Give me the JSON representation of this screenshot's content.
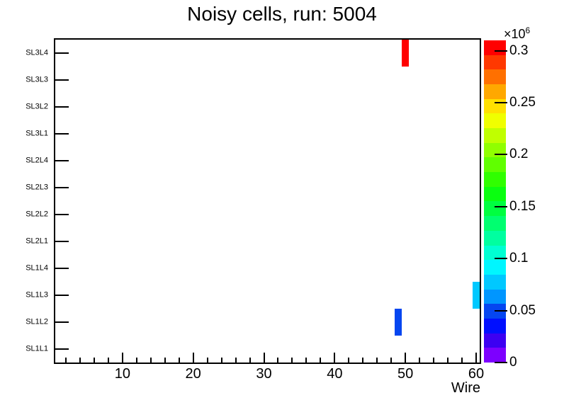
{
  "title": "Noisy cells, run: 5004",
  "x_axis": {
    "title": "Wire",
    "major_ticks": [
      10,
      20,
      30,
      40,
      50,
      60
    ],
    "minor_step": 2,
    "min": 0.5,
    "max": 60.5
  },
  "y_axis": {
    "labels_top_to_bottom": [
      "SL3L4",
      "SL3L3",
      "SL3L2",
      "SL3L1",
      "SL2L4",
      "SL2L3",
      "SL2L2",
      "SL2L1",
      "SL1L4",
      "SL1L3",
      "SL1L2",
      "SL1L1"
    ]
  },
  "z_axis": {
    "exponent_label": "×10",
    "exponent": "6",
    "tick_labels": [
      "0.3",
      "0.25",
      "0.2",
      "0.15",
      "0.1",
      "0.05",
      "0"
    ],
    "tick_values": [
      0.3,
      0.25,
      0.2,
      0.15,
      0.1,
      0.05,
      0
    ],
    "max": 0.31
  },
  "palette_colors_bottom_to_top": [
    "#7d00ff",
    "#3c00f2",
    "#000fff",
    "#0546f0",
    "#0096ff",
    "#00c8ff",
    "#00f6ff",
    "#00ffd2",
    "#00ffa0",
    "#00ff70",
    "#00ff40",
    "#0aff10",
    "#30ff00",
    "#60ff00",
    "#90ff00",
    "#c0ff00",
    "#f0ff00",
    "#ffe000",
    "#ffa800",
    "#ff7000",
    "#ff3800",
    "#ff0000"
  ],
  "chart_data": {
    "type": "heatmap",
    "title": "Noisy cells, run: 5004",
    "xlabel": "Wire",
    "x_range": [
      0.5,
      60.5
    ],
    "rows_bottom_to_top": [
      "SL1L1",
      "SL1L2",
      "SL1L3",
      "SL1L4",
      "SL2L1",
      "SL2L2",
      "SL2L3",
      "SL2L4",
      "SL3L1",
      "SL3L2",
      "SL3L3",
      "SL3L4"
    ],
    "z_max": 310000,
    "z_scale_note": "color scale 0 to 0.31 ×10^6, 22 discrete rainbow bands",
    "cells": [
      {
        "row": "SL3L4",
        "wire": 50,
        "value": 305000,
        "color": "#ff0000"
      },
      {
        "row": "SL1L3",
        "wire": 60,
        "value": 75000,
        "color": "#00c8ff"
      },
      {
        "row": "SL1L2",
        "wire": 49,
        "value": 50000,
        "color": "#0546f0"
      }
    ]
  }
}
